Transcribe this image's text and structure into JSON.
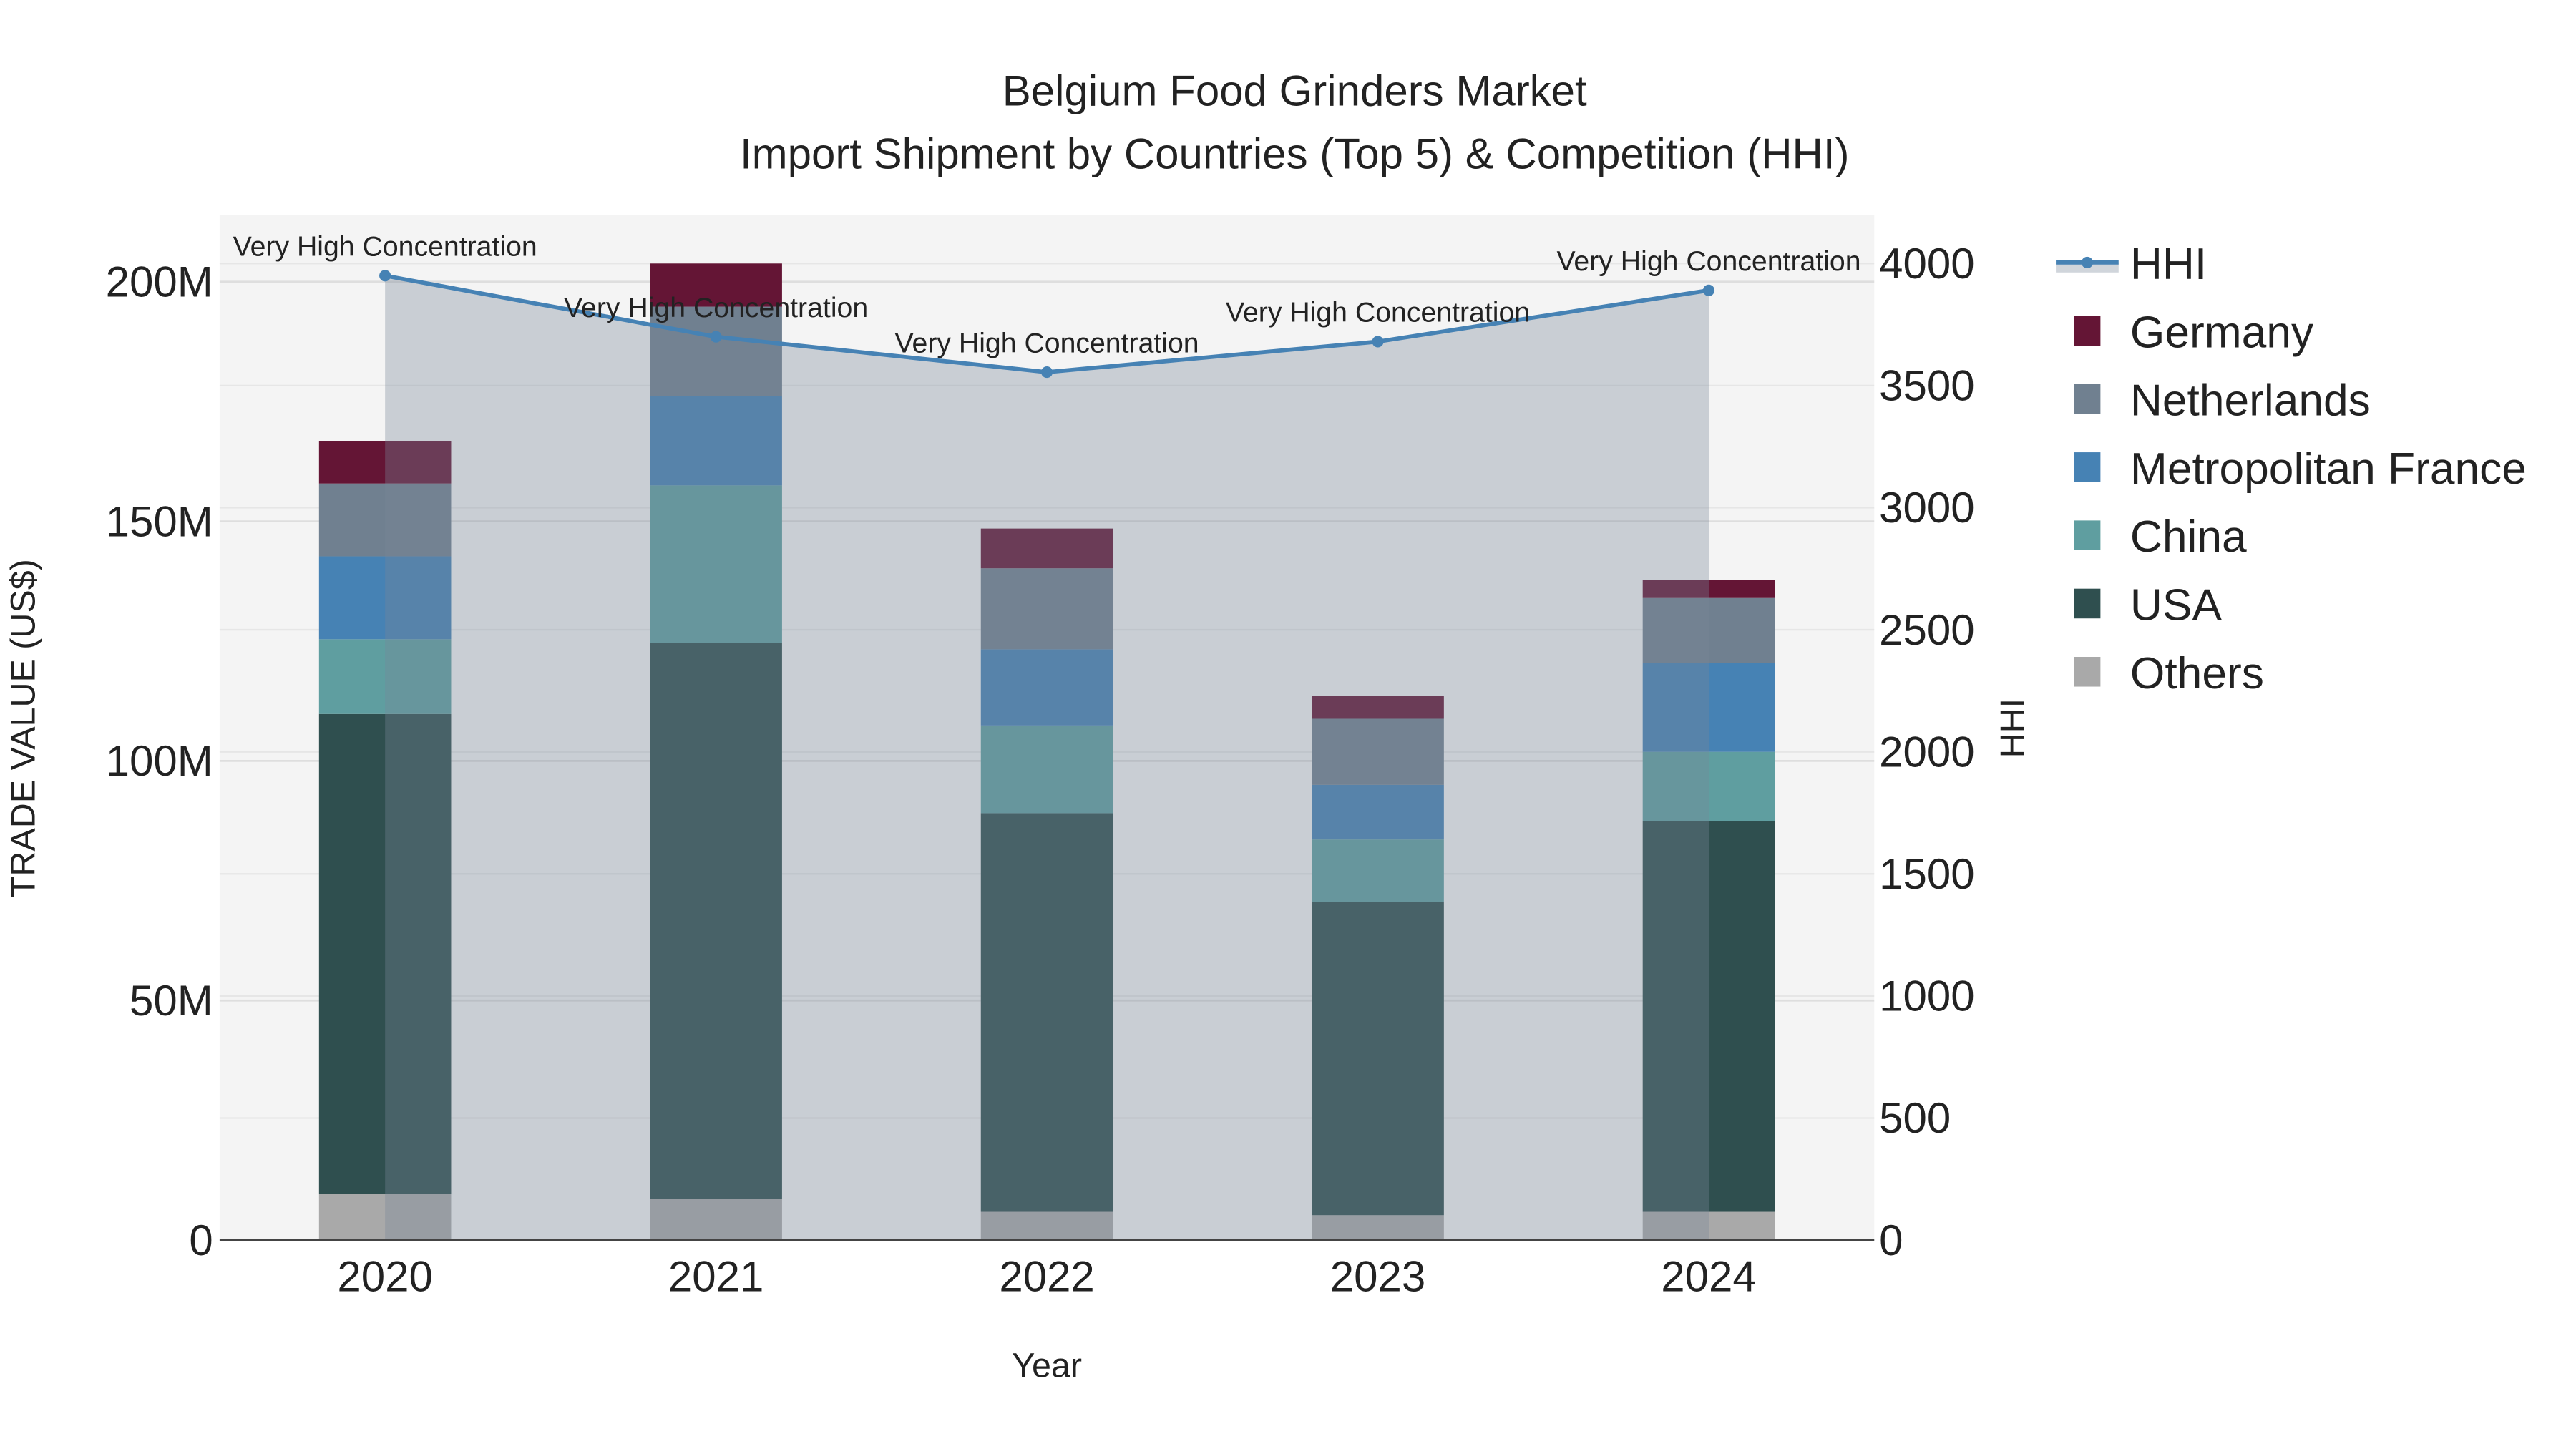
{
  "chart_data": {
    "type": "bar",
    "title": "Belgium Food Grinders Market",
    "subtitle": "Import Shipment by Countries (Top 5) & Competition (HHI)",
    "xlabel": "Year",
    "ylabel": "TRADE VALUE (US$)",
    "y2label": "HHI",
    "categories": [
      "2020",
      "2021",
      "2022",
      "2023",
      "2024"
    ],
    "ylim": [
      0,
      214
    ],
    "y_ticks": [
      0,
      50,
      100,
      150,
      200
    ],
    "y_tick_labels": [
      "0",
      "50M",
      "100M",
      "150M",
      "200M"
    ],
    "y2lim": [
      0,
      4200
    ],
    "y2_ticks": [
      0,
      500,
      1000,
      1500,
      2000,
      2500,
      3000,
      3500,
      4000
    ],
    "y2_tick_labels": [
      "0",
      "500",
      "1000",
      "1500",
      "2000",
      "2500",
      "3000",
      "3500",
      "4000"
    ],
    "value_unit": "US$ millions",
    "stacked": true,
    "series": [
      {
        "name": "Others",
        "color": "#A9A9A9",
        "values": [
          9.7,
          8.6,
          5.9,
          5.2,
          5.9
        ]
      },
      {
        "name": "USA",
        "color": "#2F4F4F",
        "values": [
          100.1,
          116.1,
          83.2,
          65.3,
          81.5
        ]
      },
      {
        "name": "China",
        "color": "#5F9EA0",
        "values": [
          15.6,
          32.8,
          18.3,
          13.1,
          14.5
        ]
      },
      {
        "name": "Metropolitan France",
        "color": "#4682B4",
        "values": [
          17.3,
          18.7,
          15.9,
          11.4,
          18.6
        ]
      },
      {
        "name": "Netherlands",
        "color": "#708090",
        "values": [
          15.2,
          18.6,
          16.9,
          13.8,
          13.5
        ]
      },
      {
        "name": "Germany",
        "color": "#641535",
        "values": [
          8.9,
          9.0,
          8.3,
          4.8,
          3.8
        ]
      }
    ],
    "line": {
      "name": "HHI",
      "color": "#4682B4",
      "fill": "rgba(119,136,153,0.35)",
      "values": [
        3950,
        3700,
        3555,
        3680,
        3890
      ],
      "annotations": [
        "Very High Concentration",
        "Very High Concentration",
        "Very High Concentration",
        "Very High Concentration",
        "Very High Concentration"
      ]
    },
    "legend": [
      "HHI",
      "Germany",
      "Netherlands",
      "Metropolitan France",
      "China",
      "USA",
      "Others"
    ],
    "legend_position": "right",
    "grid": true
  }
}
